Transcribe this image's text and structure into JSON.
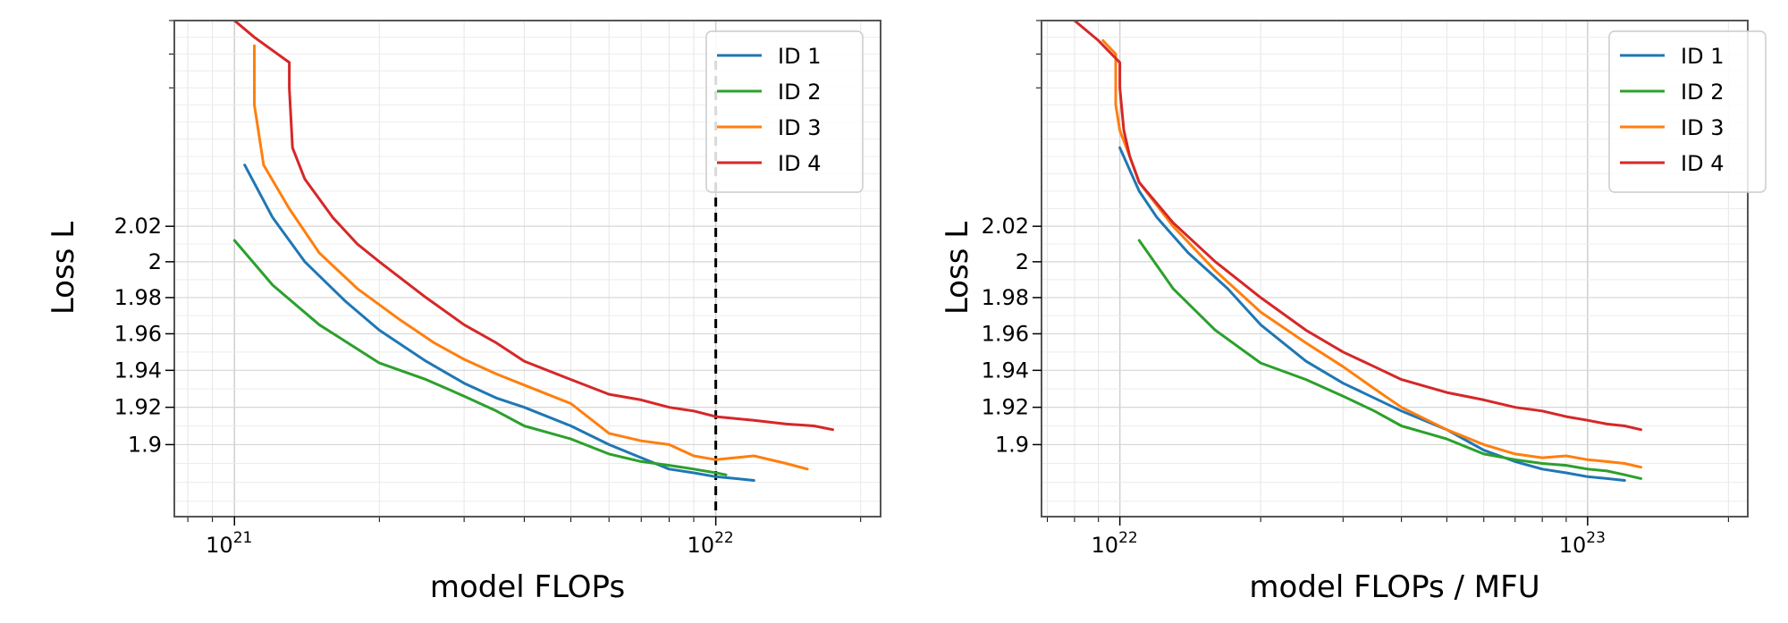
{
  "chart_data": [
    {
      "type": "line",
      "xlabel": "model FLOPs",
      "ylabel": "Loss L",
      "xscale": "log",
      "yscale": "log",
      "xlim": [
        7.5e+20,
        2.2e+22
      ],
      "ylim": [
        1.862,
        2.14
      ],
      "xticks": [
        {
          "value": 1e+21,
          "base": "10",
          "exp": "21"
        },
        {
          "value": 1e+22,
          "base": "10",
          "exp": "22"
        }
      ],
      "yticks": [
        {
          "value": 2.02,
          "label": "2.02"
        },
        {
          "value": 2.0,
          "label": "2"
        },
        {
          "value": 1.98,
          "label": "1.98"
        },
        {
          "value": 1.96,
          "label": "1.96"
        },
        {
          "value": 1.94,
          "label": "1.94"
        },
        {
          "value": 1.92,
          "label": "1.92"
        },
        {
          "value": 1.9,
          "label": "1.9"
        }
      ],
      "grid": true,
      "legend": "top-right",
      "vline": {
        "x": 1e+22,
        "style": "dashed"
      },
      "series": [
        {
          "name": "ID 1",
          "color": "#1f77b4",
          "x": [
            1.05e+21,
            1.2e+21,
            1.4e+21,
            1.7e+21,
            2e+21,
            2.5e+21,
            3e+21,
            3.5e+21,
            4e+21,
            5e+21,
            6e+21,
            7e+21,
            8e+21,
            9e+21,
            1e+22,
            1.1e+22,
            1.2e+22
          ],
          "y": [
            2.055,
            2.025,
            2.0,
            1.978,
            1.962,
            1.945,
            1.933,
            1.925,
            1.92,
            1.91,
            1.9,
            1.893,
            1.887,
            1.885,
            1.883,
            1.882,
            1.881
          ]
        },
        {
          "name": "ID 2",
          "color": "#2ca02c",
          "x": [
            1e+21,
            1.2e+21,
            1.5e+21,
            2e+21,
            2.5e+21,
            3e+21,
            3.5e+21,
            4e+21,
            5e+21,
            6e+21,
            7e+21,
            8e+21,
            9e+21,
            1e+22,
            1.05e+22
          ],
          "y": [
            2.012,
            1.987,
            1.965,
            1.944,
            1.935,
            1.926,
            1.918,
            1.91,
            1.903,
            1.895,
            1.891,
            1.889,
            1.887,
            1.885,
            1.884
          ]
        },
        {
          "name": "ID 3",
          "color": "#ff7f0e",
          "x": [
            1.1e+21,
            1.1e+21,
            1.15e+21,
            1.3e+21,
            1.5e+21,
            1.8e+21,
            2.2e+21,
            2.6e+21,
            3e+21,
            3.5e+21,
            4e+21,
            5e+21,
            6e+21,
            7e+21,
            8e+21,
            9e+21,
            1e+22,
            1.2e+22,
            1.4e+22,
            1.55e+22
          ],
          "y": [
            2.125,
            2.09,
            2.055,
            2.03,
            2.005,
            1.985,
            1.968,
            1.955,
            1.946,
            1.938,
            1.932,
            1.922,
            1.906,
            1.902,
            1.9,
            1.894,
            1.892,
            1.894,
            1.89,
            1.887
          ]
        },
        {
          "name": "ID 4",
          "color": "#d62728",
          "x": [
            1e+21,
            1.1e+21,
            1.3e+21,
            1.3e+21,
            1.32e+21,
            1.4e+21,
            1.6e+21,
            1.8e+21,
            2e+21,
            2.5e+21,
            3e+21,
            3.5e+21,
            4e+21,
            5e+21,
            6e+21,
            7e+21,
            8e+21,
            9e+21,
            1e+22,
            1.2e+22,
            1.4e+22,
            1.6e+22,
            1.75e+22
          ],
          "y": [
            2.14,
            2.13,
            2.115,
            2.1,
            2.065,
            2.047,
            2.025,
            2.01,
            2.0,
            1.98,
            1.965,
            1.955,
            1.945,
            1.935,
            1.927,
            1.924,
            1.92,
            1.918,
            1.915,
            1.913,
            1.911,
            1.91,
            1.908
          ]
        }
      ]
    },
    {
      "type": "line",
      "xlabel": "model FLOPs / MFU",
      "ylabel": "Loss L",
      "xscale": "log",
      "yscale": "log",
      "xlim": [
        6.8e+21,
        2.2e+23
      ],
      "ylim": [
        1.862,
        2.14
      ],
      "xticks": [
        {
          "value": 1e+22,
          "base": "10",
          "exp": "22"
        },
        {
          "value": 1e+23,
          "base": "10",
          "exp": "23"
        }
      ],
      "yticks": [
        {
          "value": 2.02,
          "label": "2.02"
        },
        {
          "value": 2.0,
          "label": "2"
        },
        {
          "value": 1.98,
          "label": "1.98"
        },
        {
          "value": 1.96,
          "label": "1.96"
        },
        {
          "value": 1.94,
          "label": "1.94"
        },
        {
          "value": 1.92,
          "label": "1.92"
        },
        {
          "value": 1.9,
          "label": "1.9"
        }
      ],
      "grid": true,
      "legend": "top-right",
      "series": [
        {
          "name": "ID 1",
          "color": "#1f77b4",
          "x": [
            1e+22,
            1.1e+22,
            1.2e+22,
            1.4e+22,
            1.7e+22,
            2e+22,
            2.5e+22,
            3e+22,
            3.5e+22,
            4e+22,
            5e+22,
            6e+22,
            7e+22,
            8e+22,
            9e+22,
            1e+23,
            1.1e+23,
            1.2e+23
          ],
          "y": [
            2.065,
            2.04,
            2.025,
            2.005,
            1.985,
            1.965,
            1.945,
            1.933,
            1.925,
            1.918,
            1.908,
            1.897,
            1.891,
            1.887,
            1.885,
            1.883,
            1.882,
            1.881
          ]
        },
        {
          "name": "ID 2",
          "color": "#2ca02c",
          "x": [
            1.1e+22,
            1.3e+22,
            1.6e+22,
            2e+22,
            2.5e+22,
            3e+22,
            3.5e+22,
            4e+22,
            5e+22,
            6e+22,
            7e+22,
            8e+22,
            9e+22,
            1e+23,
            1.1e+23,
            1.2e+23,
            1.3e+23
          ],
          "y": [
            2.012,
            1.985,
            1.962,
            1.944,
            1.935,
            1.926,
            1.918,
            1.91,
            1.903,
            1.895,
            1.892,
            1.89,
            1.889,
            1.887,
            1.886,
            1.884,
            1.882
          ]
        },
        {
          "name": "ID 3",
          "color": "#ff7f0e",
          "x": [
            9.2e+21,
            9.8e+21,
            9.8e+21,
            1e+22,
            1.05e+22,
            1.1e+22,
            1.3e+22,
            1.6e+22,
            2e+22,
            2.5e+22,
            3e+22,
            3.5e+22,
            4e+22,
            5e+22,
            6e+22,
            7e+22,
            8e+22,
            9e+22,
            1e+23,
            1.1e+23,
            1.2e+23,
            1.3e+23
          ],
          "y": [
            2.128,
            2.12,
            2.09,
            2.075,
            2.06,
            2.045,
            2.02,
            1.995,
            1.972,
            1.955,
            1.942,
            1.93,
            1.92,
            1.908,
            1.9,
            1.895,
            1.893,
            1.894,
            1.892,
            1.891,
            1.89,
            1.888
          ]
        },
        {
          "name": "ID 4",
          "color": "#d62728",
          "x": [
            8e+21,
            9e+21,
            1e+22,
            1e+22,
            1.02e+22,
            1.05e+22,
            1.1e+22,
            1.3e+22,
            1.6e+22,
            2e+22,
            2.5e+22,
            3e+22,
            3.5e+22,
            4e+22,
            5e+22,
            6e+22,
            7e+22,
            8e+22,
            9e+22,
            1e+23,
            1.1e+23,
            1.2e+23,
            1.3e+23
          ],
          "y": [
            2.14,
            2.128,
            2.115,
            2.1,
            2.075,
            2.06,
            2.045,
            2.022,
            2.0,
            1.98,
            1.962,
            1.95,
            1.942,
            1.935,
            1.928,
            1.924,
            1.92,
            1.918,
            1.915,
            1.913,
            1.911,
            1.91,
            1.908
          ]
        }
      ]
    }
  ]
}
